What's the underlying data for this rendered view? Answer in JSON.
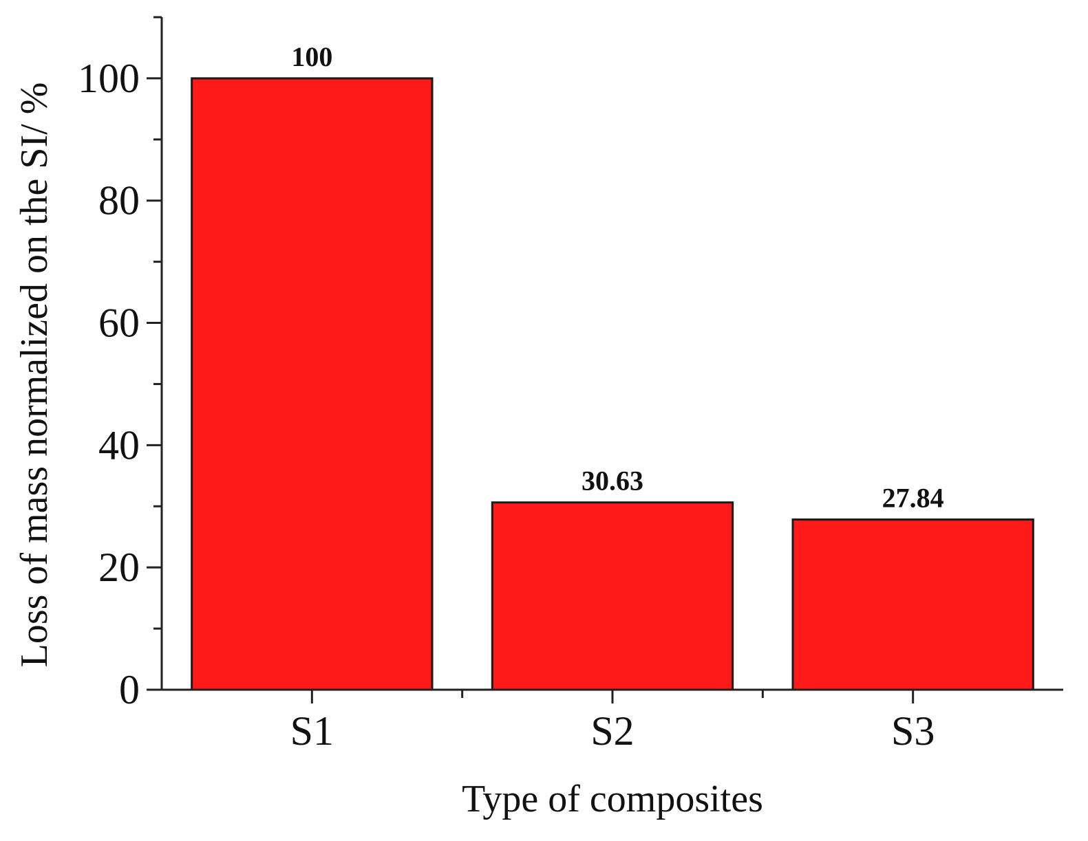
{
  "chart_data": {
    "type": "bar",
    "categories": [
      "S1",
      "S2",
      "S3"
    ],
    "values": [
      100,
      30.63,
      27.84
    ],
    "data_labels": [
      "100",
      "30.63",
      "27.84"
    ],
    "title": "",
    "xlabel": "Type of composites",
    "ylabel": "Loss of mass normalized on the SI/ %",
    "ylim": [
      0,
      110
    ],
    "yticks": [
      0,
      20,
      40,
      60,
      80,
      100
    ],
    "yticks_minor_step": 10,
    "grid": false,
    "legend": "none",
    "colors": {
      "bar_fill": "#ff1a1a",
      "bar_stroke": "#1a1a1a",
      "axis": "#222222"
    }
  }
}
